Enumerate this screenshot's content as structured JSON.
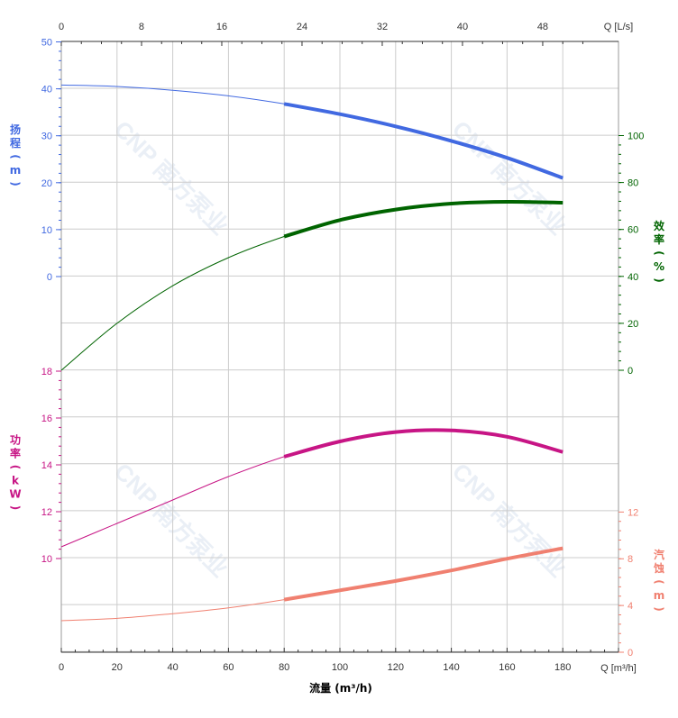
{
  "chart_data": {
    "type": "line",
    "watermark": "CNP 南方泵业",
    "x_axis": {
      "label": "流量 (m³/h)",
      "unit_label": "Q [m³/h]",
      "range": [
        0,
        200
      ],
      "ticks": [
        "0",
        "20",
        "40",
        "60",
        "80",
        "100",
        "120",
        "140",
        "160",
        "180"
      ]
    },
    "x2_axis": {
      "unit_label": "Q [L/s]",
      "ticks": [
        "0",
        "8",
        "16",
        "24",
        "32",
        "40",
        "48"
      ]
    },
    "panels": {
      "head": {
        "label": "扬程 (m)",
        "ticks": [
          "50",
          "40",
          "30",
          "20",
          "10",
          "0"
        ],
        "color": "#4169E1"
      },
      "efficiency": {
        "label": "效率 (%)",
        "ticks": [
          "100",
          "80",
          "60",
          "40",
          "20",
          "0"
        ],
        "color": "#006400"
      },
      "power": {
        "label": "功率 (kW)",
        "ticks": [
          "18",
          "16",
          "14",
          "12",
          "10"
        ],
        "color": "#C71585"
      },
      "npsh": {
        "label": "汽蚀 (m)",
        "ticks": [
          "12",
          "8",
          "4",
          "0"
        ],
        "color": "#F08070"
      }
    },
    "operating_range": [
      80,
      180
    ],
    "series": [
      {
        "name": "扬程",
        "color": "#4169E1",
        "x": [
          0,
          20,
          40,
          60,
          80,
          100,
          120,
          140,
          160,
          180
        ],
        "y": [
          40.8,
          40.5,
          39.7,
          38.5,
          36.8,
          34.6,
          32.0,
          28.9,
          25.3,
          21.0
        ]
      },
      {
        "name": "效率",
        "color": "#006400",
        "x": [
          0,
          20,
          40,
          60,
          80,
          100,
          120,
          140,
          160,
          180
        ],
        "y": [
          0,
          20,
          36,
          48,
          57,
          64,
          68.5,
          71,
          71.8,
          71.4
        ]
      },
      {
        "name": "功率",
        "color": "#C71585",
        "x": [
          0,
          20,
          40,
          60,
          80,
          100,
          120,
          140,
          160,
          180
        ],
        "y": [
          10.5,
          11.5,
          12.5,
          13.5,
          14.35,
          15.0,
          15.4,
          15.47,
          15.2,
          14.55
        ]
      },
      {
        "name": "汽蚀",
        "color": "#F08070",
        "x": [
          0,
          20,
          40,
          60,
          80,
          100,
          120,
          140,
          160,
          180
        ],
        "y": [
          2.7,
          2.9,
          3.3,
          3.8,
          4.5,
          5.3,
          6.1,
          7.0,
          8.0,
          8.9
        ]
      }
    ]
  }
}
